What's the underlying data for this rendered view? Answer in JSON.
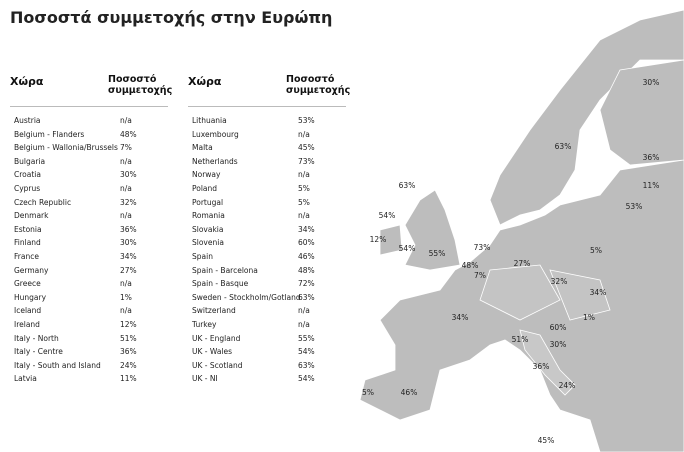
{
  "title": "Ποσοστά συμμετοχής στην Ευρώπη",
  "tables": [
    {
      "header": [
        "Χώρα",
        "Ποσοστό συμμετοχής"
      ],
      "rows": [
        [
          "Austria",
          "n/a"
        ],
        [
          "Belgium - Flanders",
          "48%"
        ],
        [
          "Belgium - Wallonia/Brussels",
          "7%"
        ],
        [
          "Bulgaria",
          "n/a"
        ],
        [
          "Croatia",
          "30%"
        ],
        [
          "Cyprus",
          "n/a"
        ],
        [
          "Czech Republic",
          "32%"
        ],
        [
          "Denmark",
          "n/a"
        ],
        [
          "Estonia",
          "36%"
        ],
        [
          "Finland",
          "30%"
        ],
        [
          "France",
          "34%"
        ],
        [
          "Germany",
          "27%"
        ],
        [
          "Greece",
          "n/a"
        ],
        [
          "Hungary",
          "1%"
        ],
        [
          "Iceland",
          "n/a"
        ],
        [
          "Ireland",
          "12%"
        ],
        [
          "Italy - North",
          "51%"
        ],
        [
          "Italy - Centre",
          "36%"
        ],
        [
          "Italy - South and Island",
          "24%"
        ],
        [
          "Latvia",
          "11%"
        ]
      ]
    },
    {
      "header": [
        "Χώρα",
        "Ποσοστό συμμετοχής"
      ],
      "rows": [
        [
          "Lithuania",
          "53%"
        ],
        [
          "Luxembourg",
          "n/a"
        ],
        [
          "Malta",
          "45%"
        ],
        [
          "Netherlands",
          "73%"
        ],
        [
          "Norway",
          "n/a"
        ],
        [
          "Poland",
          "5%"
        ],
        [
          "Portugal",
          "5%"
        ],
        [
          "Romania",
          "n/a"
        ],
        [
          "Slovakia",
          "34%"
        ],
        [
          "Slovenia",
          "60%"
        ],
        [
          "Spain",
          "46%"
        ],
        [
          "Spain - Barcelona",
          "48%"
        ],
        [
          "Spain - Basque",
          "72%"
        ],
        [
          "Sweden - Stockholm/Gotland",
          "63%"
        ],
        [
          "Switzerland",
          "n/a"
        ],
        [
          "Turkey",
          "n/a"
        ],
        [
          "UK - England",
          "55%"
        ],
        [
          "UK - Wales",
          "54%"
        ],
        [
          "UK - Scotland",
          "63%"
        ],
        [
          "UK - NI",
          "54%"
        ]
      ]
    }
  ],
  "map_labels": [
    "30%",
    "63%",
    "36%",
    "11%",
    "53%",
    "63%",
    "54%",
    "12%",
    "54%",
    "55%",
    "73%",
    "48%",
    "7%",
    "27%",
    "5%",
    "32%",
    "34%",
    "1%",
    "34%",
    "60%",
    "51%",
    "30%",
    "36%",
    "24%",
    "5%",
    "46%",
    "45%"
  ]
}
